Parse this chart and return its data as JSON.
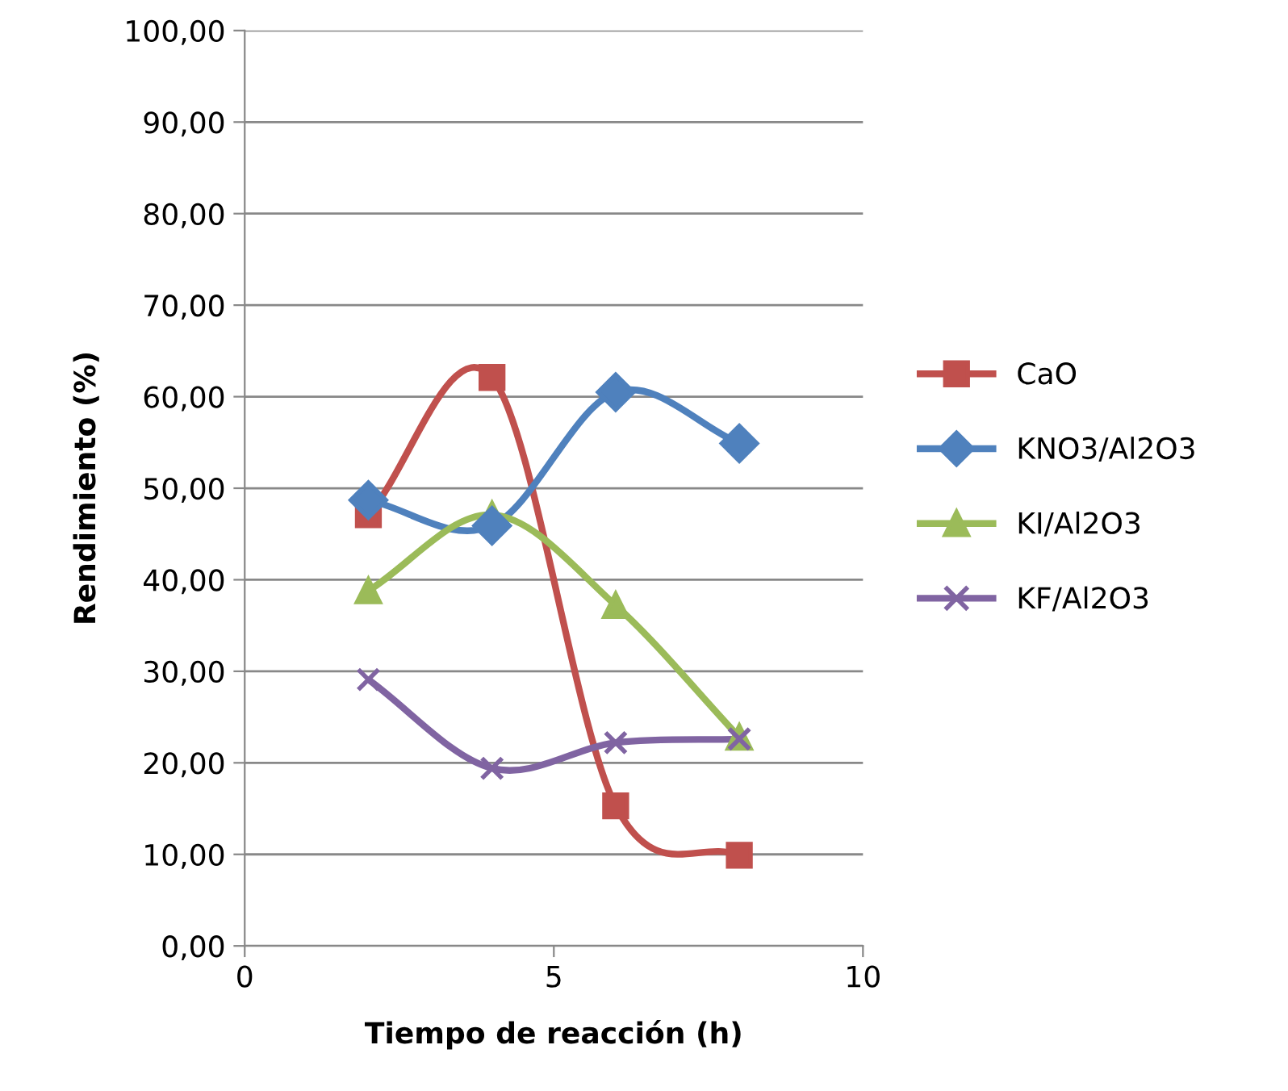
{
  "chart_data": {
    "type": "line",
    "xlabel": "Tiempo de reacción (h)",
    "ylabel": "Rendimiento (%)",
    "x": [
      2,
      4,
      6,
      8
    ],
    "series": [
      {
        "name": "CaO",
        "color": "#c0504d",
        "marker": "square",
        "values": [
          47.1,
          62.1,
          15.3,
          9.9
        ]
      },
      {
        "name": "KNO3/Al2O3",
        "color": "#4f81bd",
        "marker": "diamond",
        "values": [
          48.7,
          45.9,
          60.5,
          54.9
        ]
      },
      {
        "name": "KI/Al2O3",
        "color": "#9bbb59",
        "marker": "triangle",
        "values": [
          38.8,
          47.1,
          37.2,
          22.8
        ]
      },
      {
        "name": "KF/Al2O3",
        "color": "#8064a2",
        "marker": "cross",
        "values": [
          29.1,
          19.4,
          22.2,
          22.6
        ]
      }
    ],
    "xlim": [
      0,
      10
    ],
    "xticks": [
      0,
      5,
      10
    ],
    "ylim": [
      0,
      100
    ],
    "yticks": [
      {
        "value": 0,
        "label": "0,00"
      },
      {
        "value": 10,
        "label": "10,00"
      },
      {
        "value": 20,
        "label": "20,00"
      },
      {
        "value": 30,
        "label": "30,00"
      },
      {
        "value": 40,
        "label": "40,00"
      },
      {
        "value": 50,
        "label": "50,00"
      },
      {
        "value": 60,
        "label": "60,00"
      },
      {
        "value": 70,
        "label": "70,00"
      },
      {
        "value": 80,
        "label": "80,00"
      },
      {
        "value": 90,
        "label": "90,00"
      },
      {
        "value": 100,
        "label": "100,00"
      }
    ],
    "grid": "y",
    "legend": "right",
    "line_style": "solid"
  }
}
